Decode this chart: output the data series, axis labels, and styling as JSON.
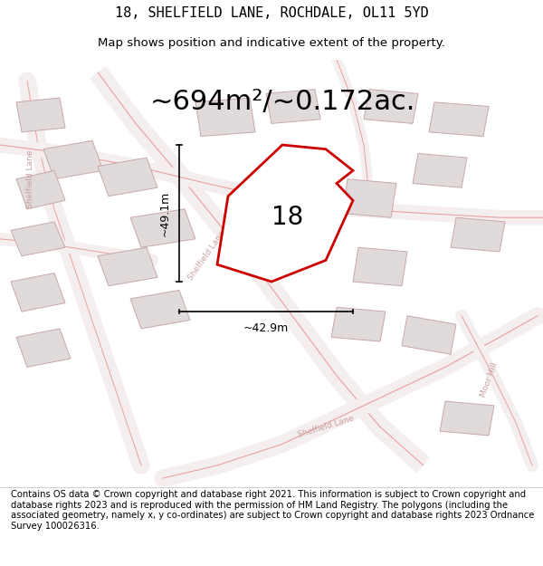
{
  "title_line1": "18, SHELFIELD LANE, ROCHDALE, OL11 5YD",
  "title_line2": "Map shows position and indicative extent of the property.",
  "area_text": "~694m²/~0.172ac.",
  "label_number": "18",
  "dim_vertical": "~49.1m",
  "dim_horizontal": "~42.9m",
  "footer_text": "Contains OS data © Crown copyright and database right 2021. This information is subject to Crown copyright and database rights 2023 and is reproduced with the permission of HM Land Registry. The polygons (including the associated geometry, namely x, y co-ordinates) are subject to Crown copyright and database rights 2023 Ordnance Survey 100026316.",
  "map_bg": "#ffffff",
  "highlight_color": "#cc0000",
  "road_color": "#e8a0a0",
  "road_fill": "#f5eeee",
  "building_fill": "#e0dada",
  "building_edge": "#c8a8a8",
  "title_fontsize": 11,
  "subtitle_fontsize": 9.5,
  "area_fontsize": 22,
  "label_fontsize": 20,
  "footer_fontsize": 7.2,
  "dim_fontsize": 9,
  "road_label_color": "#c8a0a0",
  "road_label_fontsize": 6.5
}
